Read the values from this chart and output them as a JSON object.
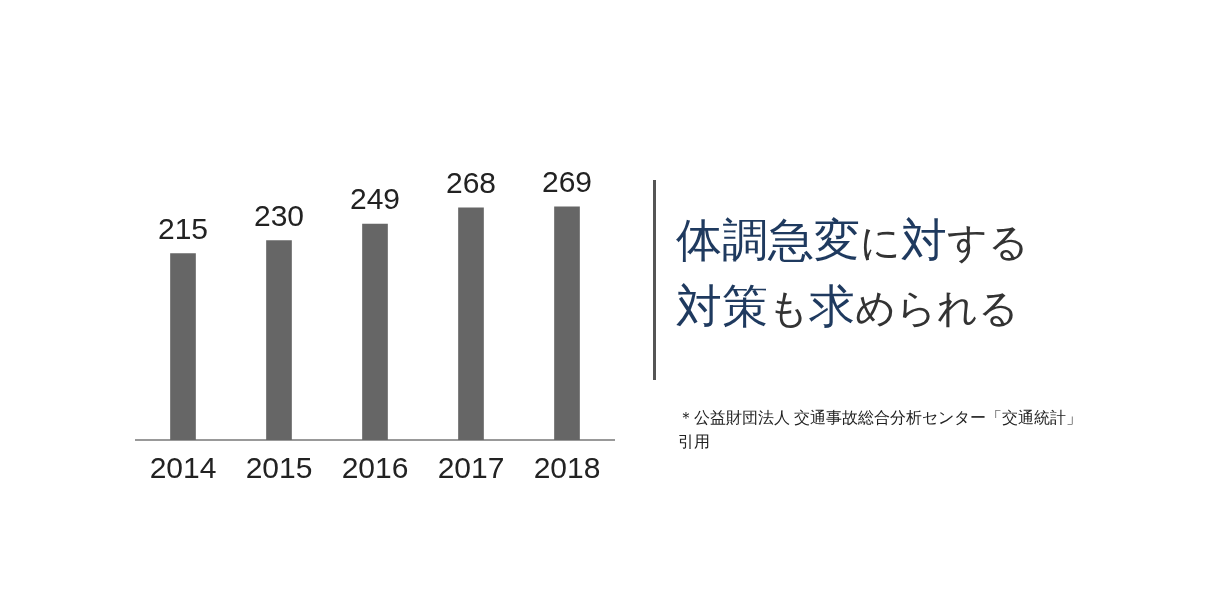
{
  "chart_data": {
    "type": "bar",
    "title": "体調急変に対する対策も求められる",
    "categories": [
      "2014",
      "2015",
      "2016",
      "2017",
      "2018"
    ],
    "values": [
      215,
      230,
      249,
      268,
      269
    ],
    "color": "#666666",
    "data_labels": true,
    "grid": false,
    "legend": false,
    "annotations": [
      "＊公益財団法人 交通事故総合分析センター「交通統計」引用"
    ]
  }
}
